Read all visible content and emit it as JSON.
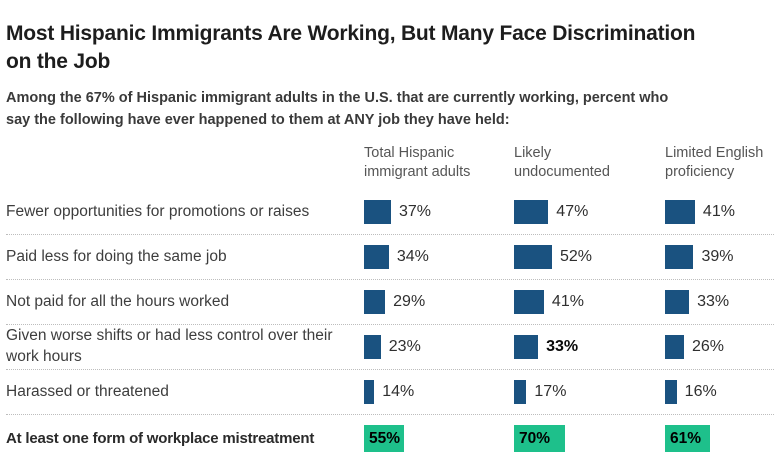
{
  "header": {
    "title_lines": [
      "Most Hispanic Immigrants Are Working, But Many Face Discrimination",
      "on the Job"
    ],
    "subtitle_lines": [
      "Among the 67% of Hispanic immigrant adults in the U.S. that are currently working, percent who",
      "say the following have ever happened to them at ANY job they have held:"
    ]
  },
  "columns": [
    "Total Hispanic immigrant adults",
    "Likely undocumented",
    "Limited English proficiency"
  ],
  "rows": [
    {
      "label": "Fewer opportunities for promotions or raises",
      "cells": [
        {
          "value": 37,
          "label": "37%"
        },
        {
          "value": 47,
          "label": "47%"
        },
        {
          "value": 41,
          "label": "41%"
        }
      ]
    },
    {
      "label": "Paid less for doing the same job",
      "cells": [
        {
          "value": 34,
          "label": "34%"
        },
        {
          "value": 52,
          "label": "52%"
        },
        {
          "value": 39,
          "label": "39%"
        }
      ]
    },
    {
      "label": "Not paid for all the hours worked",
      "cells": [
        {
          "value": 29,
          "label": "29%"
        },
        {
          "value": 41,
          "label": "41%"
        },
        {
          "value": 33,
          "label": "33%"
        }
      ]
    },
    {
      "label": "Given worse shifts or had less control over their work hours",
      "cells": [
        {
          "value": 23,
          "label": "23%"
        },
        {
          "value": 33,
          "label": "33%"
        },
        {
          "value": 26,
          "label": "26%"
        }
      ]
    },
    {
      "label": "Harassed or threatened",
      "cells": [
        {
          "value": 14,
          "label": "14%"
        },
        {
          "value": 17,
          "label": "17%"
        },
        {
          "value": 16,
          "label": "16%"
        }
      ]
    },
    {
      "label": "At least one form of workplace mistreatment",
      "cells": [
        {
          "value": 55,
          "label": "55%"
        },
        {
          "value": 70,
          "label": "70%"
        },
        {
          "value": 61,
          "label": "61%"
        }
      ]
    }
  ],
  "chart_data": {
    "type": "bar",
    "unit": "%",
    "title": "Most Hispanic Immigrants Are Working, But Many Face Discrimination on the Job",
    "subtitle": "Among the 67% of Hispanic immigrant adults in the U.S. that are currently working, percent who say the following have ever happened to them at ANY job they have held:",
    "categories": [
      "Fewer opportunities for promotions or raises",
      "Paid less for doing the same job",
      "Not paid for all the hours worked",
      "Given worse shifts or had less control over their work hours",
      "Harassed or threatened",
      "At least one form of workplace mistreatment"
    ],
    "series": [
      {
        "name": "Total Hispanic immigrant adults",
        "values": [
          37,
          34,
          29,
          23,
          14,
          55
        ]
      },
      {
        "name": "Likely undocumented",
        "values": [
          47,
          52,
          41,
          33,
          17,
          70
        ]
      },
      {
        "name": "Limited English proficiency",
        "values": [
          41,
          39,
          33,
          26,
          16,
          61
        ]
      }
    ],
    "xlim": [
      0,
      100
    ],
    "grid": "dotted row separators",
    "legend_position": "column headers on top",
    "highlight_row_index": 5,
    "bold_value": {
      "row_index": 3,
      "series_index": 1,
      "value": 33
    },
    "colors": {
      "bar": "#1A5280",
      "highlight": "#1EC08B"
    }
  }
}
